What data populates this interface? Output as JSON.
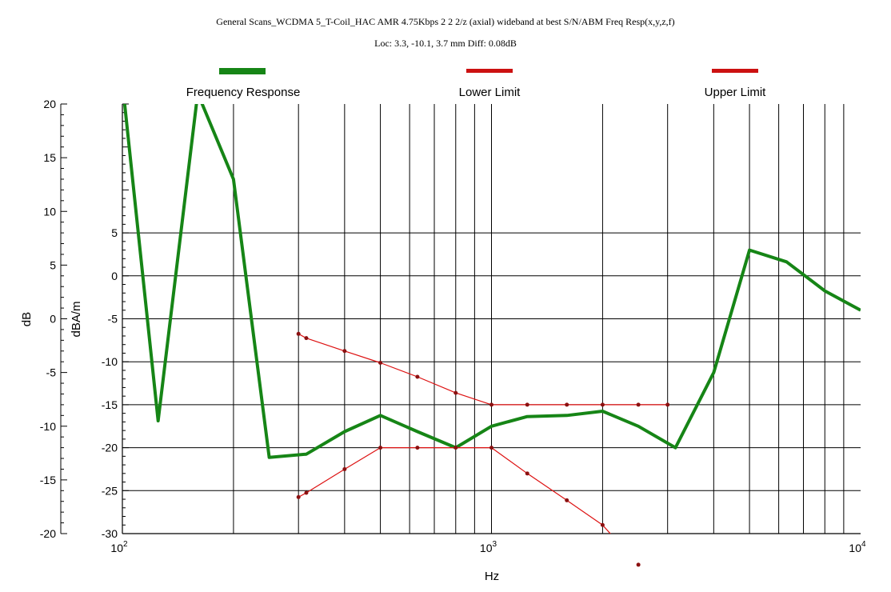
{
  "chart_data": {
    "type": "line",
    "title": "General Scans_WCDMA 5_T-Coil_HAC AMR 4.75Kbps 2 2 2/z (axial) wideband at best S/N/ABM Freq Resp(x,y,z,f)",
    "subtitle": "Loc: 3.3, -10.1, 3.7 mm Diff: 0.08dB",
    "xlabel": "Hz",
    "ylabel_left": "dB",
    "ylabel_right": "dBA/m",
    "x_scale": "log",
    "xlim": [
      100,
      10000
    ],
    "ylim_left": [
      -20,
      20
    ],
    "ylim_right": [
      -30,
      20
    ],
    "x_ticks": [
      {
        "base": "10",
        "exp": "2",
        "value": 100
      },
      {
        "base": "10",
        "exp": "3",
        "value": 1000
      },
      {
        "base": "10",
        "exp": "4",
        "value": 10000
      }
    ],
    "y_ticks_left": [
      "20",
      "15",
      "10",
      "5",
      "0",
      "-5",
      "-10",
      "-15",
      "-20"
    ],
    "y_ticks_right": [
      "5",
      "0",
      "-5",
      "-10",
      "-15",
      "-20",
      "-25",
      "-30"
    ],
    "grid": true,
    "legend_position": "top",
    "series": [
      {
        "name": "Frequency Response",
        "color": "#168516",
        "x": [
          100,
          125,
          160,
          200,
          250,
          315,
          400,
          500,
          630,
          800,
          1000,
          1250,
          1600,
          2000,
          2500,
          3150,
          4000,
          5000,
          6300,
          8000,
          10000
        ],
        "y": [
          22,
          -9.5,
          21,
          13,
          -12.9,
          -12.6,
          -10.5,
          -9.0,
          -10.5,
          -12.0,
          -10.0,
          -9.1,
          -9.0,
          -8.6,
          -10.0,
          -12.0,
          -5.0,
          6.4,
          5.3,
          2.6,
          0.8
        ]
      },
      {
        "name": "Lower Limit",
        "color": "#dd1111",
        "x": [
          300,
          315,
          400,
          500,
          630,
          800,
          1000,
          1250,
          1600,
          2000,
          2500,
          3000
        ],
        "y": [
          -16.6,
          -16.2,
          -14.0,
          -12.0,
          -12.0,
          -12.0,
          -12.0,
          -14.4,
          -16.9,
          -19.2,
          -22.9,
          -26.0
        ]
      },
      {
        "name": "Upper Limit",
        "color": "#dd1111",
        "x": [
          300,
          315,
          400,
          500,
          630,
          800,
          1000,
          1250,
          1600,
          2000,
          2500,
          3000
        ],
        "y": [
          -1.4,
          -1.8,
          -3.0,
          -4.1,
          -5.4,
          -6.9,
          -8.0,
          -8.0,
          -8.0,
          -8.0,
          -8.0,
          -8.0
        ]
      }
    ]
  }
}
